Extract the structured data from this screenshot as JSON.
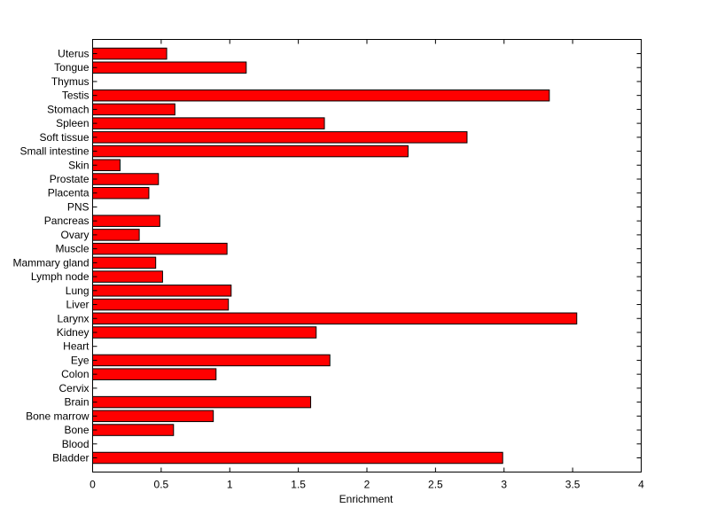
{
  "chart_data": {
    "type": "bar",
    "orientation": "horizontal",
    "categories": [
      "Bladder",
      "Blood",
      "Bone",
      "Bone marrow",
      "Brain",
      "Cervix",
      "Colon",
      "Eye",
      "Heart",
      "Kidney",
      "Larynx",
      "Liver",
      "Lung",
      "Lymph node",
      "Mammary gland",
      "Muscle",
      "Ovary",
      "Pancreas",
      "PNS",
      "Placenta",
      "Prostate",
      "Skin",
      "Small intestine",
      "Soft tissue",
      "Spleen",
      "Stomach",
      "Testis",
      "Thymus",
      "Tongue",
      "Uterus"
    ],
    "values": [
      2.99,
      0,
      0.59,
      0.88,
      1.59,
      0,
      0.9,
      1.73,
      0,
      1.63,
      3.53,
      0.99,
      1.01,
      0.51,
      0.46,
      0.98,
      0.34,
      0.49,
      0,
      0.41,
      0.48,
      0.2,
      2.3,
      2.73,
      1.69,
      0.6,
      3.33,
      0,
      1.12,
      0.54
    ],
    "xlabel": "Enrichment",
    "ylabel": "",
    "title": "",
    "xlim": [
      0,
      4
    ],
    "xticks": [
      0,
      0.5,
      1,
      1.5,
      2,
      2.5,
      3,
      3.5,
      4
    ],
    "xtick_labels": [
      "0",
      "0.5",
      "1",
      "1.5",
      "2",
      "2.5",
      "3",
      "3.5",
      "4"
    ],
    "grid": false,
    "bar_color": "#ff0000",
    "edge_color": "#000000"
  }
}
